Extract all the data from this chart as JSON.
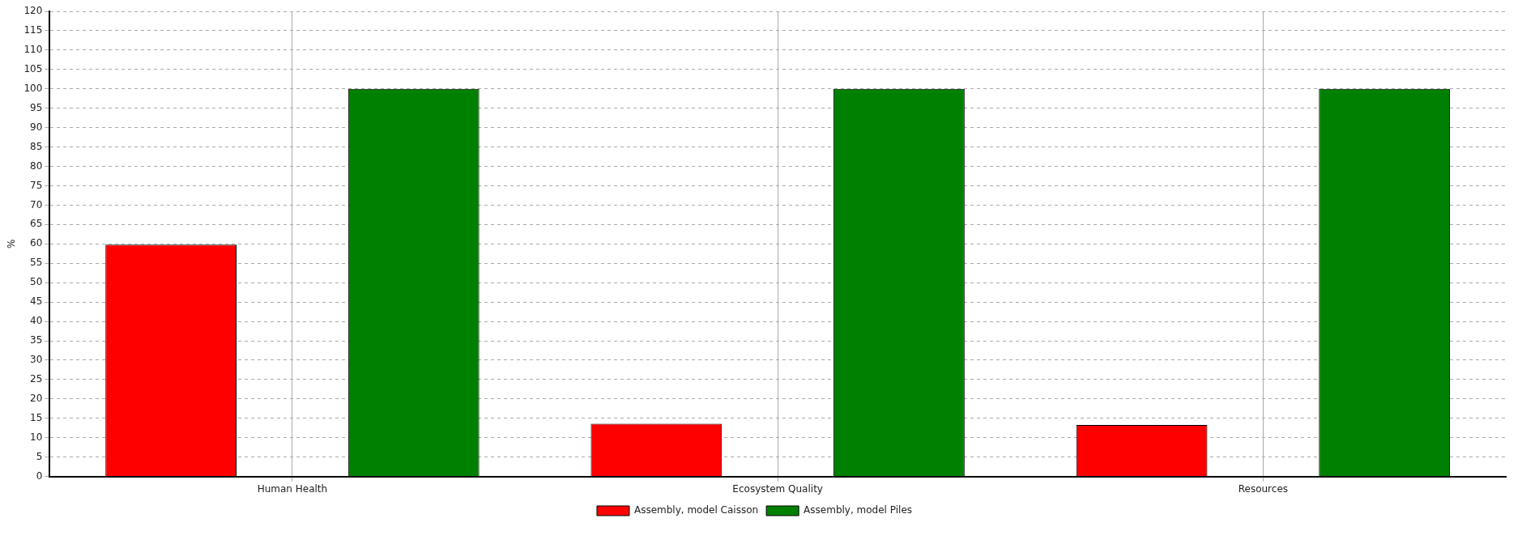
{
  "chart_data": {
    "type": "bar",
    "ylabel": "%",
    "categories": [
      "Human Health",
      "Ecosystem Quality",
      "Resources"
    ],
    "series": [
      {
        "name": "Assembly, model Caisson",
        "color": "#ff0000",
        "values": [
          59.8,
          13.6,
          13.3
        ]
      },
      {
        "name": "Assembly, model Piles",
        "color": "#008000",
        "values": [
          100,
          100,
          100
        ]
      }
    ],
    "ylim": [
      0,
      120
    ],
    "yticks": [
      0,
      5,
      10,
      15,
      20,
      25,
      30,
      35,
      40,
      45,
      50,
      55,
      60,
      65,
      70,
      75,
      80,
      85,
      90,
      95,
      100,
      105,
      110,
      115,
      120
    ],
    "grid": true,
    "legend": "bottom"
  }
}
